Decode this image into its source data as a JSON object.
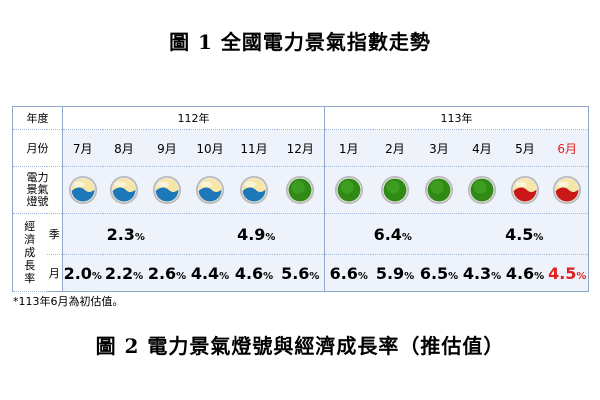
{
  "title": "圖 1 全國電力景氣指數走勢",
  "caption": "圖 2 電力景氣燈號與經濟成長率（推估值）",
  "footnote": "*113年6月為初估值。",
  "table": {
    "year_header": "年度",
    "month_header": "月份",
    "light_header": "電力景氣燈號",
    "econ_header": "經濟成長率",
    "quarter_header": "季",
    "monthly_header": "月",
    "years": [
      "112年",
      "113年"
    ],
    "months": [
      "7月",
      "8月",
      "9月",
      "10月",
      "11月",
      "12月",
      "1月",
      "2月",
      "3月",
      "4月",
      "5月",
      "6月"
    ],
    "lights": [
      "yellow-blue",
      "yellow-blue",
      "yellow-blue",
      "yellow-blue",
      "yellow-blue",
      "green",
      "green",
      "green",
      "green",
      "green",
      "yellow-red",
      "yellow-red"
    ],
    "quarter_values": [
      "2.3",
      "4.9",
      "6.4",
      "4.5"
    ],
    "monthly_values": [
      "2.0",
      "2.2",
      "2.6",
      "4.4",
      "4.6",
      "5.6",
      "6.6",
      "5.9",
      "6.5",
      "4.3",
      "4.6",
      "4.5"
    ],
    "percent_sign": "%",
    "highlight_color": "#e02020"
  }
}
